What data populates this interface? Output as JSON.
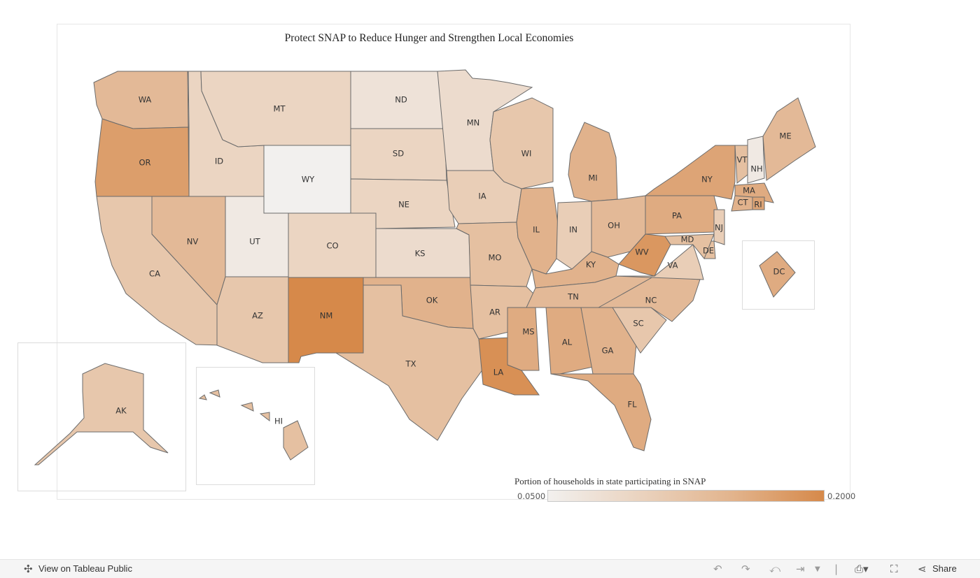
{
  "title": "Protect SNAP to Reduce Hunger and Strengthen Local Economies",
  "legend": {
    "title": "Portion of households in state participating in SNAP",
    "min_label": "0.0500",
    "max_label": "0.2000",
    "min": 0.05,
    "max": 0.2
  },
  "states": [
    {
      "abbr": "WA",
      "value": 0.13
    },
    {
      "abbr": "OR",
      "value": 0.17
    },
    {
      "abbr": "CA",
      "value": 0.11
    },
    {
      "abbr": "ID",
      "value": 0.09
    },
    {
      "abbr": "NV",
      "value": 0.13
    },
    {
      "abbr": "MT",
      "value": 0.09
    },
    {
      "abbr": "WY",
      "value": 0.05
    },
    {
      "abbr": "UT",
      "value": 0.06
    },
    {
      "abbr": "AZ",
      "value": 0.11
    },
    {
      "abbr": "CO",
      "value": 0.09
    },
    {
      "abbr": "NM",
      "value": 0.2
    },
    {
      "abbr": "ND",
      "value": 0.07
    },
    {
      "abbr": "SD",
      "value": 0.09
    },
    {
      "abbr": "NE",
      "value": 0.09
    },
    {
      "abbr": "KS",
      "value": 0.08
    },
    {
      "abbr": "OK",
      "value": 0.14
    },
    {
      "abbr": "TX",
      "value": 0.12
    },
    {
      "abbr": "MN",
      "value": 0.08
    },
    {
      "abbr": "IA",
      "value": 0.1
    },
    {
      "abbr": "MO",
      "value": 0.12
    },
    {
      "abbr": "AR",
      "value": 0.12
    },
    {
      "abbr": "LA",
      "value": 0.19
    },
    {
      "abbr": "WI",
      "value": 0.11
    },
    {
      "abbr": "IL",
      "value": 0.14
    },
    {
      "abbr": "IN",
      "value": 0.1
    },
    {
      "abbr": "MI",
      "value": 0.14
    },
    {
      "abbr": "OH",
      "value": 0.13
    },
    {
      "abbr": "KY",
      "value": 0.14
    },
    {
      "abbr": "TN",
      "value": 0.13
    },
    {
      "abbr": "MS",
      "value": 0.15
    },
    {
      "abbr": "AL",
      "value": 0.15
    },
    {
      "abbr": "GA",
      "value": 0.14
    },
    {
      "abbr": "FL",
      "value": 0.15
    },
    {
      "abbr": "SC",
      "value": 0.11
    },
    {
      "abbr": "NC",
      "value": 0.13
    },
    {
      "abbr": "VA",
      "value": 0.1
    },
    {
      "abbr": "WV",
      "value": 0.18
    },
    {
      "abbr": "PA",
      "value": 0.15
    },
    {
      "abbr": "NY",
      "value": 0.16
    },
    {
      "abbr": "VT",
      "value": 0.12
    },
    {
      "abbr": "NH",
      "value": 0.06
    },
    {
      "abbr": "ME",
      "value": 0.13
    },
    {
      "abbr": "MA",
      "value": 0.15
    },
    {
      "abbr": "RI",
      "value": 0.16
    },
    {
      "abbr": "CT",
      "value": 0.14
    },
    {
      "abbr": "NJ",
      "value": 0.1
    },
    {
      "abbr": "DE",
      "value": 0.12
    },
    {
      "abbr": "MD",
      "value": 0.12
    },
    {
      "abbr": "DC",
      "value": 0.15
    },
    {
      "abbr": "AK",
      "value": 0.11
    },
    {
      "abbr": "HI",
      "value": 0.12
    }
  ],
  "colors": {
    "low": "#f2f0ee",
    "high": "#d6894a",
    "stroke": "#6b6b6b"
  },
  "toolbar": {
    "view_label": "View on Tableau Public",
    "share_label": "Share",
    "icons": [
      "undo-icon",
      "redo-icon",
      "revert-icon",
      "refresh-icon",
      "download-icon",
      "fullscreen-icon",
      "share-icon"
    ]
  }
}
